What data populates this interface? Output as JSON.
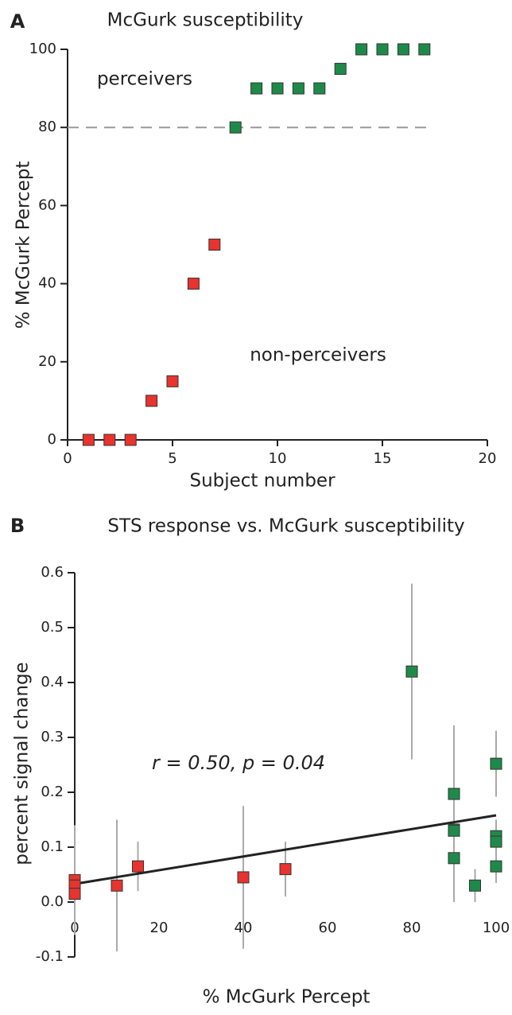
{
  "chart_data": [
    {
      "type": "scatter",
      "panel_label": "A",
      "title": "McGurk susceptibility",
      "xlabel": "Subject number",
      "ylabel": "% McGurk Percept",
      "xlim": [
        0,
        20
      ],
      "xticks": [
        0,
        5,
        10,
        15,
        20
      ],
      "ylim": [
        0,
        100
      ],
      "yticks": [
        0,
        20,
        40,
        60,
        80,
        100
      ],
      "threshold": 80,
      "series": [
        {
          "name": "non-perceivers",
          "color": "#e8332f",
          "x": [
            1,
            2,
            3,
            4,
            5,
            6,
            7
          ],
          "values": [
            0,
            0,
            0,
            10,
            15,
            40,
            50
          ]
        },
        {
          "name": "perceivers",
          "color": "#1e8a4a",
          "x": [
            8,
            9,
            10,
            11,
            12,
            13,
            14,
            15,
            16,
            17
          ],
          "values": [
            80,
            90,
            90,
            90,
            90,
            95,
            100,
            100,
            100,
            100
          ]
        }
      ]
    },
    {
      "type": "scatter",
      "panel_label": "B",
      "title": "STS response vs. McGurk susceptibility",
      "xlabel": "% McGurk Percept",
      "ylabel": "percent signal change",
      "annotation": "r = 0.50, p = 0.04",
      "xlim": [
        0,
        100
      ],
      "xticks": [
        0,
        20,
        40,
        60,
        80,
        100
      ],
      "ylim": [
        -0.1,
        0.6
      ],
      "yticks": [
        -0.1,
        {
          "value": 0,
          "label": "0.0"
        },
        0.1,
        0.2,
        0.3,
        0.4,
        0.5,
        0.6
      ],
      "fit": {
        "x": [
          0,
          100
        ],
        "values": [
          0.033,
          0.158
        ]
      },
      "series": [
        {
          "color": "#e8332f",
          "x": [
            0,
            0,
            0,
            10,
            15,
            40,
            50
          ],
          "values": [
            0.04,
            0.03,
            0.015,
            0.03,
            0.065,
            0.045,
            0.06
          ],
          "errors": [
            0.1,
            0.03,
            0.03,
            0.12,
            0.045,
            0.13,
            0.05
          ]
        },
        {
          "color": "#1e8a4a",
          "x": [
            80,
            90,
            90,
            90,
            90,
            95,
            100,
            100,
            100,
            100
          ],
          "values": [
            0.42,
            0.197,
            0.132,
            0.13,
            0.08,
            0.03,
            0.252,
            0.12,
            0.11,
            0.065
          ],
          "errors": [
            0.16,
            0.125,
            0.05,
            0.04,
            0.08,
            0.03,
            0.06,
            0.03,
            0.03,
            0.03
          ]
        }
      ]
    }
  ]
}
